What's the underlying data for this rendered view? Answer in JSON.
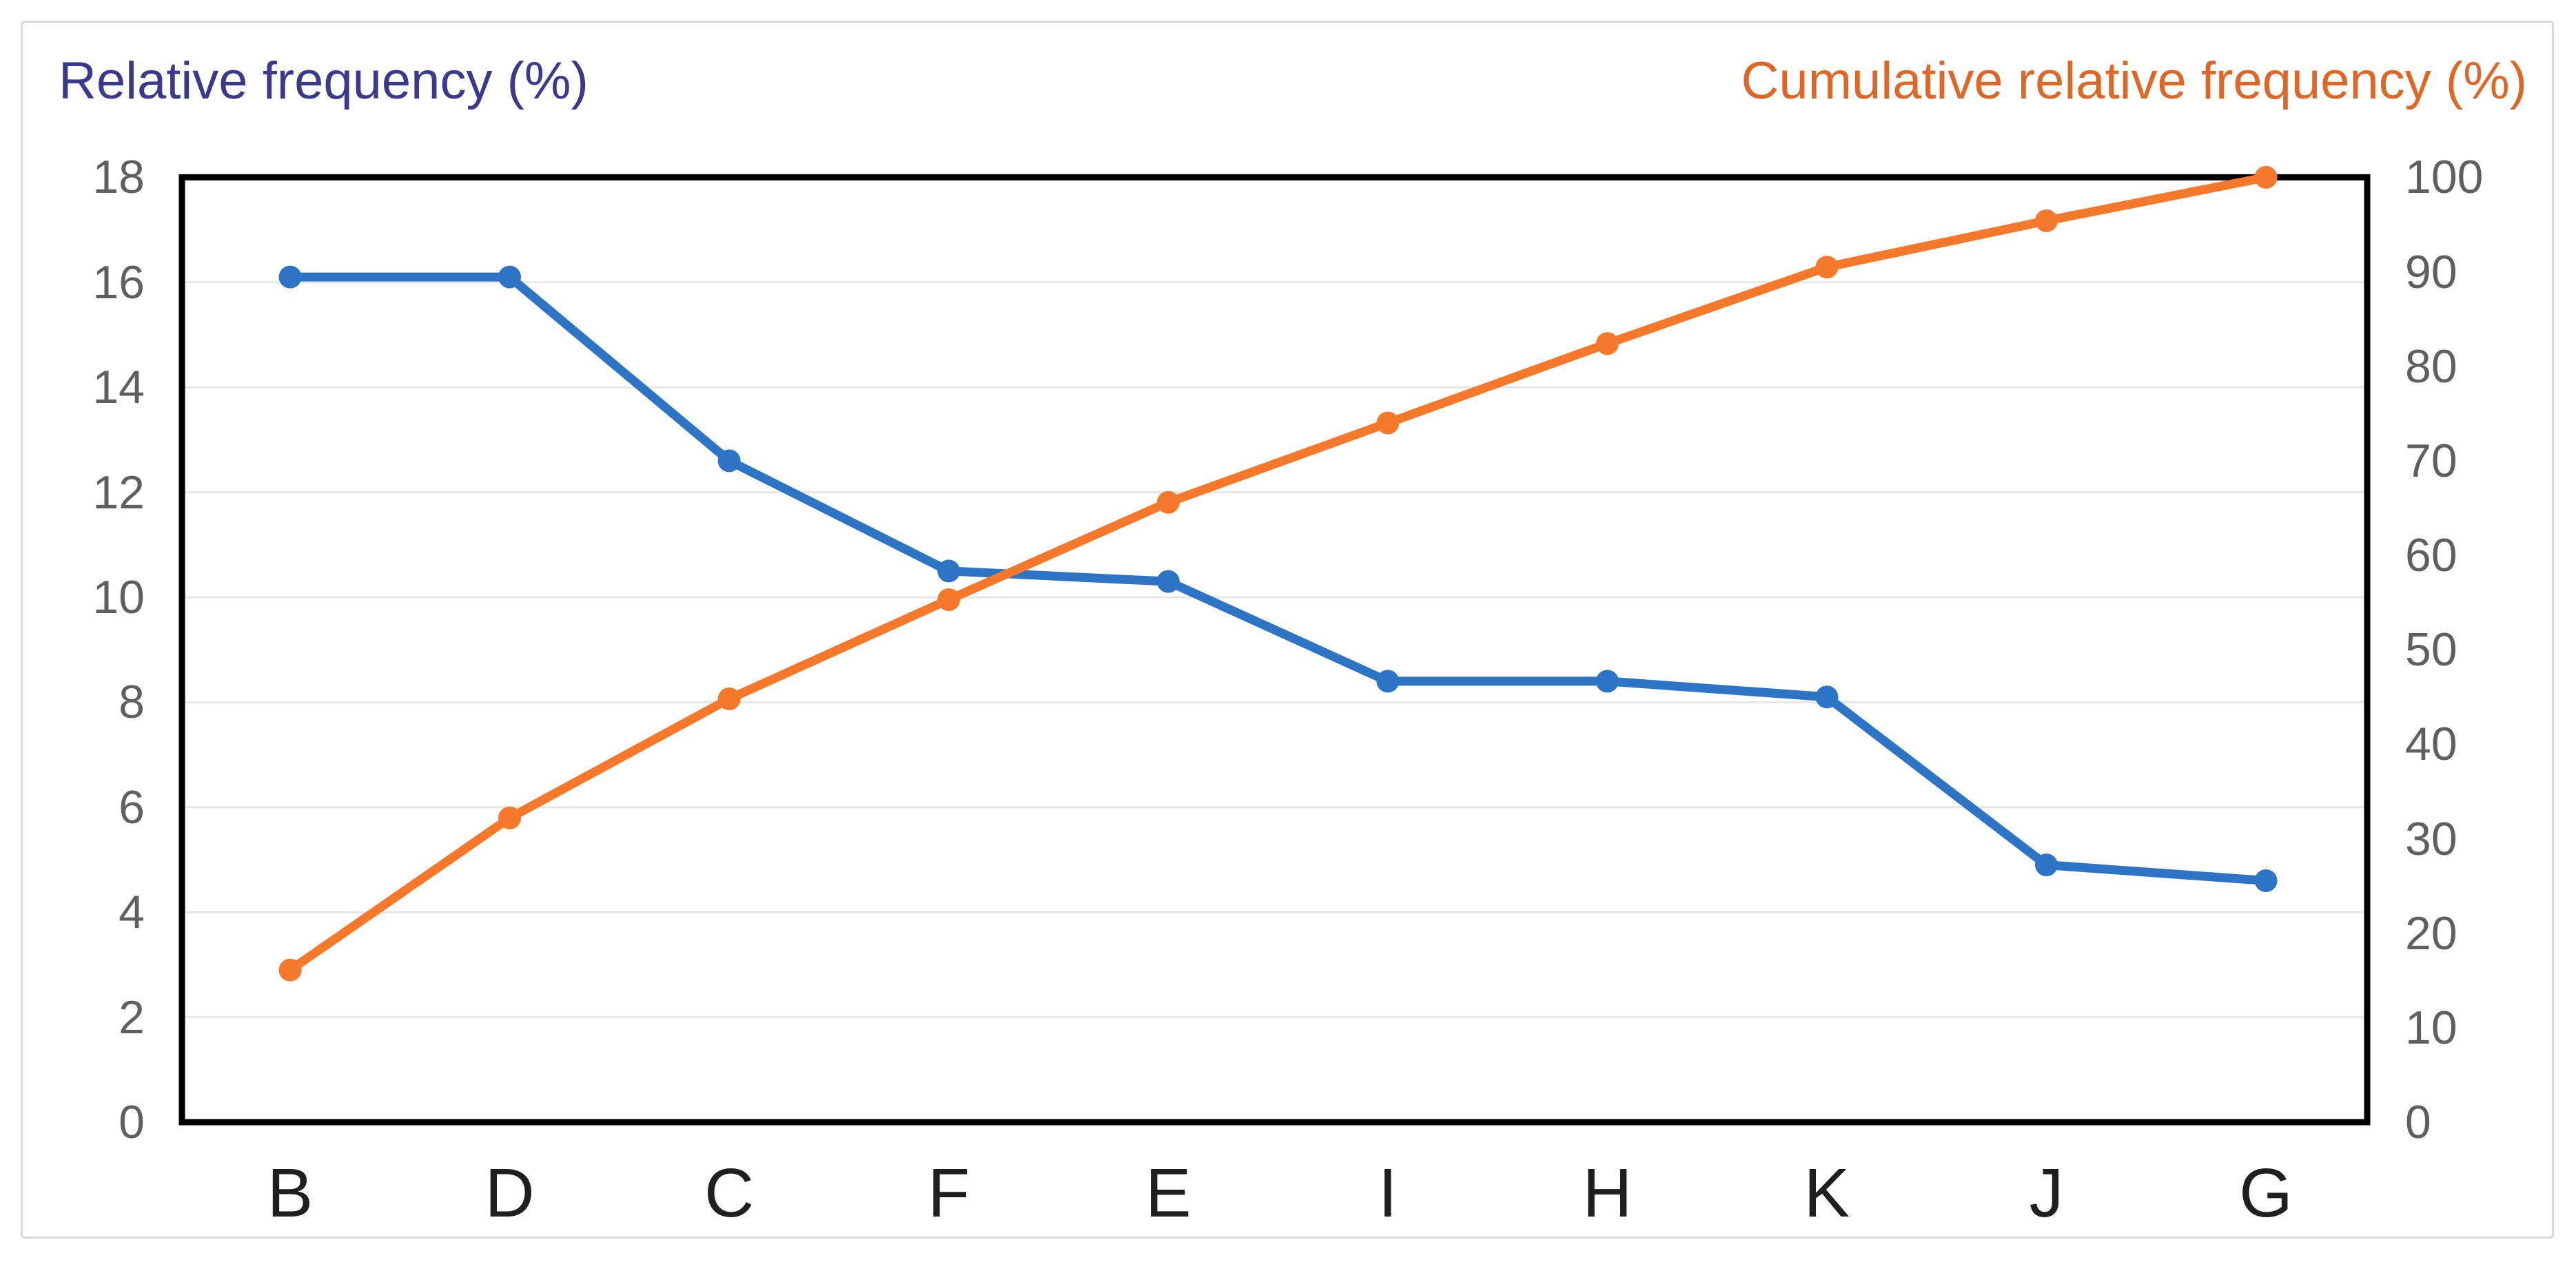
{
  "titles": {
    "left": {
      "text": "Relative frequency (%)",
      "color": "#3A3A8C"
    },
    "right": {
      "text": "Cumulative relative frequency (%)",
      "color": "#DD6727"
    }
  },
  "chart_data": {
    "type": "line",
    "categories": [
      "B",
      "D",
      "C",
      "F",
      "E",
      "I",
      "H",
      "K",
      "J",
      "G"
    ],
    "series": [
      {
        "name": "Relative frequency (%)",
        "axis": "left",
        "color": "#2E74C4",
        "values": [
          16.1,
          16.1,
          12.6,
          10.5,
          10.3,
          8.4,
          8.4,
          8.1,
          4.9,
          4.6
        ]
      },
      {
        "name": "Cumulative relative frequency (%)",
        "axis": "right",
        "color": "#F5782B",
        "values": [
          16.1,
          32.2,
          44.8,
          55.3,
          65.6,
          74.0,
          82.4,
          90.5,
          95.4,
          100.0
        ]
      }
    ],
    "left_axis": {
      "label": "Relative frequency (%)",
      "min": 0,
      "max": 18,
      "ticks": [
        0,
        2,
        4,
        6,
        8,
        10,
        12,
        14,
        16,
        18
      ]
    },
    "right_axis": {
      "label": "Cumulative relative frequency (%)",
      "min": 0,
      "max": 100,
      "ticks": [
        0,
        10,
        20,
        30,
        40,
        50,
        60,
        70,
        80,
        90,
        100
      ]
    },
    "grid": true,
    "legend_position": "axis titles above chart (left blue, right orange)"
  },
  "style_colors": {
    "grid_line": "#e7e7e7",
    "plot_border": "#000000",
    "tick_text": "#5f5f5f",
    "category_text": "#1f1f1f",
    "card_border": "#d9d9d9",
    "background": "#ffffff"
  }
}
